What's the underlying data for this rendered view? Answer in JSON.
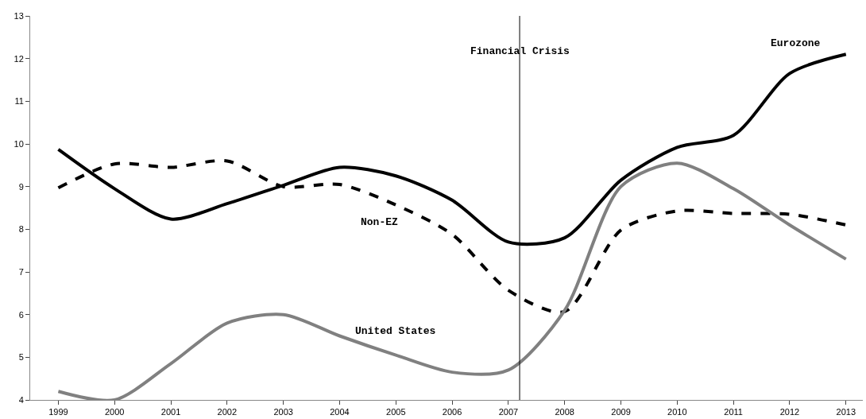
{
  "chart_data": {
    "type": "line",
    "x": [
      1999,
      2000,
      2001,
      2002,
      2003,
      2004,
      2005,
      2006,
      2007,
      2008,
      2009,
      2010,
      2011,
      2012,
      2013
    ],
    "series": [
      {
        "name": "Eurozone",
        "color": "#000000",
        "line_style": "solid",
        "values": [
          9.87,
          8.95,
          8.24,
          8.6,
          9.03,
          9.45,
          9.25,
          8.68,
          7.7,
          7.8,
          9.15,
          9.92,
          10.2,
          11.65,
          12.1
        ]
      },
      {
        "name": "Non-EZ",
        "color": "#000000",
        "line_style": "dashed",
        "values": [
          8.97,
          9.53,
          9.45,
          9.6,
          9.0,
          9.05,
          8.57,
          7.88,
          6.57,
          6.07,
          7.98,
          8.43,
          8.37,
          8.35,
          8.1
        ]
      },
      {
        "name": "United States",
        "color": "#808080",
        "line_style": "solid",
        "values": [
          4.2,
          4.0,
          4.85,
          5.8,
          6.0,
          5.5,
          5.05,
          4.65,
          4.7,
          6.1,
          9.0,
          9.55,
          8.95,
          8.1,
          7.3
        ]
      }
    ],
    "xlim": [
      1998.5,
      2013.3
    ],
    "xticks": [
      1999,
      2000,
      2001,
      2002,
      2003,
      2004,
      2005,
      2006,
      2007,
      2008,
      2009,
      2010,
      2011,
      2012,
      2013
    ],
    "ylim": [
      4,
      13
    ],
    "yticks": [
      4,
      5,
      6,
      7,
      8,
      9,
      10,
      11,
      12,
      13
    ],
    "ref_lines": [
      {
        "axis": "x",
        "value": 2007.2,
        "label": "Financial Crisis",
        "color": "#000000"
      }
    ],
    "legend": false,
    "marker": "none"
  }
}
